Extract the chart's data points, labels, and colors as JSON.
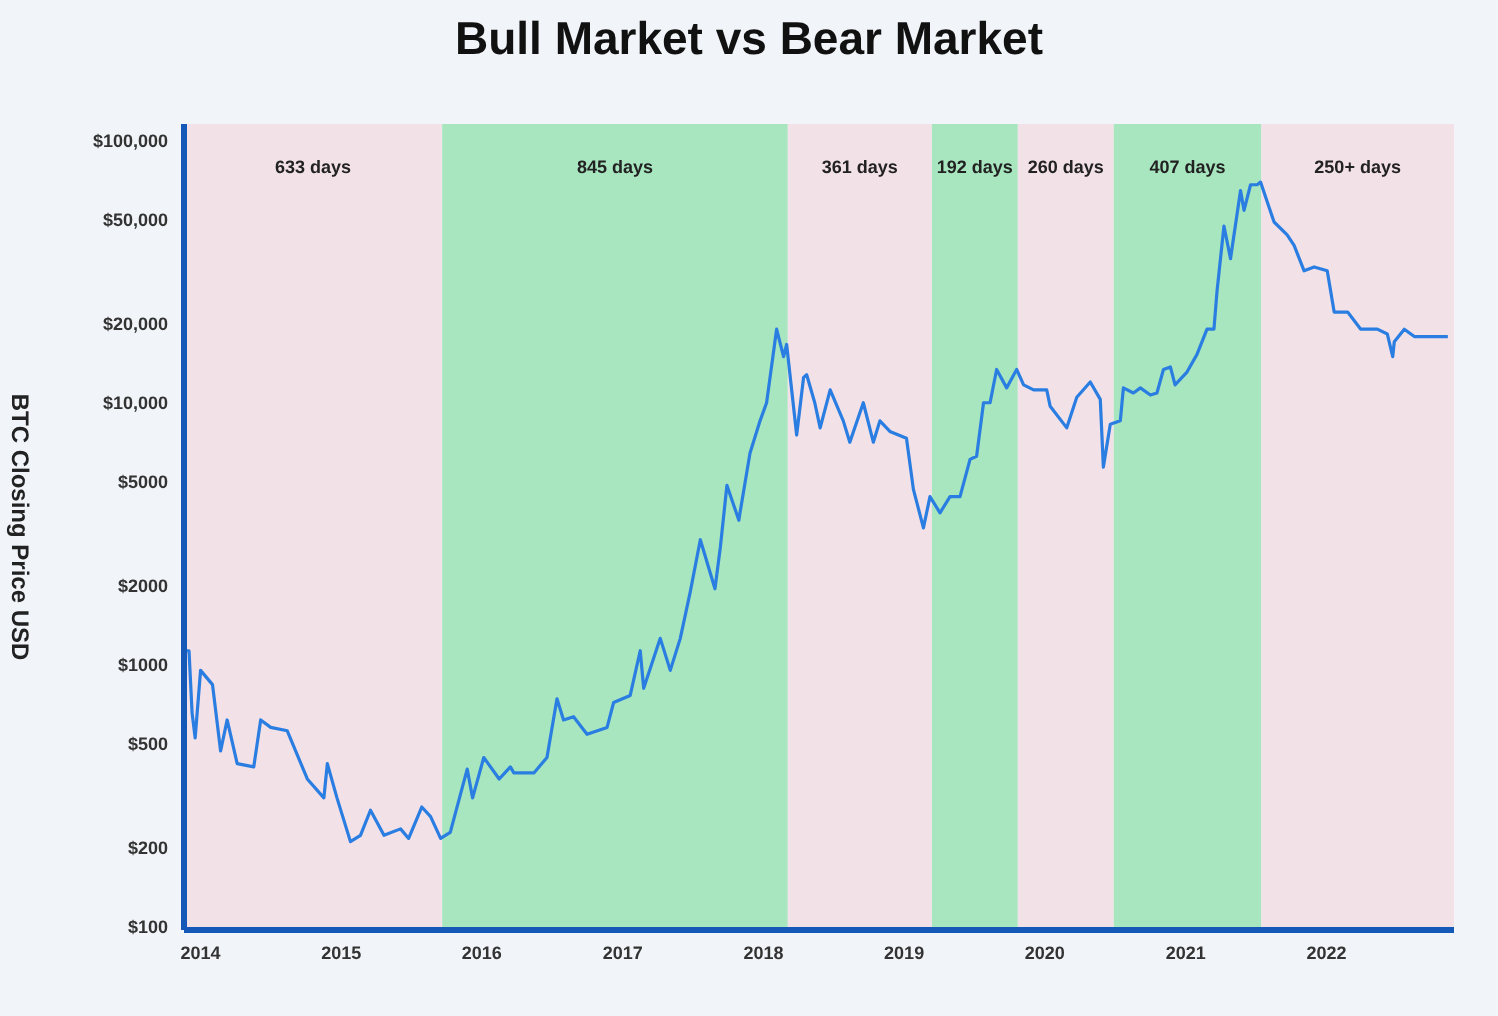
{
  "chart_data": {
    "type": "line",
    "title": "Bull Market vs Bear Market",
    "ylabel": "BTC Closing Price USD",
    "log": "y",
    "x": [
      "2013-11-19",
      "2013-12-02",
      "2013-12-10",
      "2013-12-18",
      "2014-01-01",
      "2014-02-01",
      "2014-02-22",
      "2014-03-11",
      "2014-04-06",
      "2014-05-19",
      "2014-06-06",
      "2014-07-02",
      "2014-08-14",
      "2014-10-05",
      "2014-11-17",
      "2014-11-26",
      "2014-12-21",
      "2015-01-25",
      "2015-02-20",
      "2015-03-18",
      "2015-04-22",
      "2015-06-04",
      "2015-06-25",
      "2015-07-29",
      "2015-08-21",
      "2015-09-16",
      "2015-10-11",
      "2015-11-24",
      "2015-12-08",
      "2016-01-06",
      "2016-02-15",
      "2016-03-15",
      "2016-03-24",
      "2016-05-15",
      "2016-06-18",
      "2016-07-14",
      "2016-07-31",
      "2016-08-26",
      "2016-09-30",
      "2016-11-21",
      "2016-12-08",
      "2017-01-20",
      "2017-02-15",
      "2017-02-24",
      "2017-04-08",
      "2017-05-04",
      "2017-05-30",
      "2017-06-25",
      "2017-07-21",
      "2017-08-28",
      "2017-09-11",
      "2017-09-28",
      "2017-10-29",
      "2017-11-01",
      "2017-11-27",
      "2017-12-23",
      "2018-01-09",
      "2018-02-04",
      "2018-02-22",
      "2018-03-02",
      "2018-03-28",
      "2018-04-15",
      "2018-04-23",
      "2018-05-14",
      "2018-05-28",
      "2018-06-23",
      "2018-07-27",
      "2018-08-13",
      "2018-09-17",
      "2018-10-13",
      "2018-10-30",
      "2018-11-25",
      "2019-01-07",
      "2019-01-25",
      "2019-02-20",
      "2019-03-09",
      "2019-04-04",
      "2019-04-30",
      "2019-05-26",
      "2019-06-21",
      "2019-07-08",
      "2019-07-26",
      "2019-08-12",
      "2019-08-29",
      "2019-09-24",
      "2019-10-20",
      "2019-11-07",
      "2019-12-03",
      "2020-01-06",
      "2020-01-15",
      "2020-02-27",
      "2020-03-24",
      "2020-04-28",
      "2020-05-24",
      "2020-06-01",
      "2020-06-19",
      "2020-07-15",
      "2020-07-23",
      "2020-08-18",
      "2020-09-05",
      "2020-10-01",
      "2020-10-18",
      "2020-11-04",
      "2020-11-22",
      "2020-12-04",
      "2021-01-04",
      "2021-01-30",
      "2021-02-25",
      "2021-03-15",
      "2021-03-23",
      "2021-04-10",
      "2021-04-27",
      "2021-05-23",
      "2021-06-01",
      "2021-06-18",
      "2021-07-05",
      "2021-07-14",
      "2021-08-18",
      "2021-09-21",
      "2021-10-09",
      "2021-11-04",
      "2021-11-30",
      "2022-01-03",
      "2022-01-21",
      "2022-02-25",
      "2022-03-31",
      "2022-05-13",
      "2022-06-08",
      "2022-06-22",
      "2022-06-26",
      "2022-07-22",
      "2022-08-17",
      "2022-11-12"
    ],
    "series": [
      {
        "color": "#2a7de1",
        "values": [
          1130,
          1130,
          653,
          525,
          951,
          839,
          468,
          615,
          419,
          407,
          615,
          576,
          559,
          366,
          310,
          419,
          310,
          211,
          223,
          278,
          223,
          236,
          217,
          286,
          263,
          217,
          229,
          399,
          310,
          442,
          366,
          407,
          386,
          386,
          442,
          741,
          615,
          633,
          542,
          576,
          717,
          763,
          1130,
          812,
          1260,
          951,
          1260,
          1900,
          3000,
          1950,
          2810,
          4840,
          3560,
          3800,
          6430,
          8530,
          10000,
          19100,
          15000,
          16700,
          7530,
          12500,
          12800,
          10000,
          8020,
          11200,
          8530,
          7070,
          10000,
          7070,
          8530,
          7770,
          7320,
          4670,
          3330,
          4380,
          3800,
          4380,
          4380,
          6080,
          6250,
          10000,
          10000,
          13400,
          11400,
          13400,
          11700,
          11200,
          11200,
          9690,
          8020,
          10500,
          12000,
          10300,
          5680,
          8280,
          8530,
          11400,
          10900,
          11400,
          10700,
          10900,
          13400,
          13700,
          11700,
          13100,
          15300,
          19100,
          19100,
          26700,
          47300,
          35500,
          64600,
          54300,
          68000,
          68000,
          69600,
          49000,
          43800,
          39900,
          31900,
          33000,
          31900,
          22200,
          22200,
          19100,
          19100,
          18300,
          15000,
          17100,
          19100,
          17900,
          17900
        ]
      }
    ],
    "xlim": [
      "2013-11-19",
      "2022-11-28"
    ],
    "xticks": [
      {
        "value": "2014",
        "label": "2014"
      },
      {
        "value": "2015",
        "label": "2015"
      },
      {
        "value": "2016",
        "label": "2016"
      },
      {
        "value": "2017",
        "label": "2017"
      },
      {
        "value": "2018",
        "label": "2018"
      },
      {
        "value": "2019",
        "label": "2019"
      },
      {
        "value": "2020",
        "label": "2020"
      },
      {
        "value": "2021",
        "label": "2021"
      },
      {
        "value": "2022",
        "label": "2022"
      }
    ],
    "ylim": [
      97,
      116000
    ],
    "yticks": [
      {
        "value": 100,
        "label": "$100"
      },
      {
        "value": 200,
        "label": "$200"
      },
      {
        "value": 500,
        "label": "$500"
      },
      {
        "value": 1000,
        "label": "$1000"
      },
      {
        "value": 2000,
        "label": "$2000"
      },
      {
        "value": 5000,
        "label": "$5000"
      },
      {
        "value": 10000,
        "label": "$10,000"
      },
      {
        "value": 20000,
        "label": "$20,000"
      },
      {
        "value": 50000,
        "label": "$50,000"
      },
      {
        "value": 100000,
        "label": "$100,000"
      }
    ],
    "bands": [
      {
        "axis": "x",
        "from": "2013-11-19",
        "to": "2015-09-20",
        "label": "633 days",
        "color": "#f3e1e8"
      },
      {
        "axis": "x",
        "from": "2015-09-20",
        "to": "2018-03-05",
        "label": "845 days",
        "color": "#a8e6c0"
      },
      {
        "axis": "x",
        "from": "2018-03-05",
        "to": "2019-03-14",
        "label": "361 days",
        "color": "#f3e1e8"
      },
      {
        "axis": "x",
        "from": "2019-03-14",
        "to": "2019-10-23",
        "label": "192 days",
        "color": "#a8e6c0"
      },
      {
        "axis": "x",
        "from": "2019-10-23",
        "to": "2020-06-28",
        "label": "260 days",
        "color": "#f3e1e8"
      },
      {
        "axis": "x",
        "from": "2020-06-28",
        "to": "2021-07-16",
        "label": "407 days",
        "color": "#a8e6c0"
      },
      {
        "axis": "x",
        "from": "2021-07-16",
        "to": "2022-11-28",
        "label": "250+ days",
        "color": "#f3e1e8"
      }
    ],
    "line_style": "solid"
  }
}
